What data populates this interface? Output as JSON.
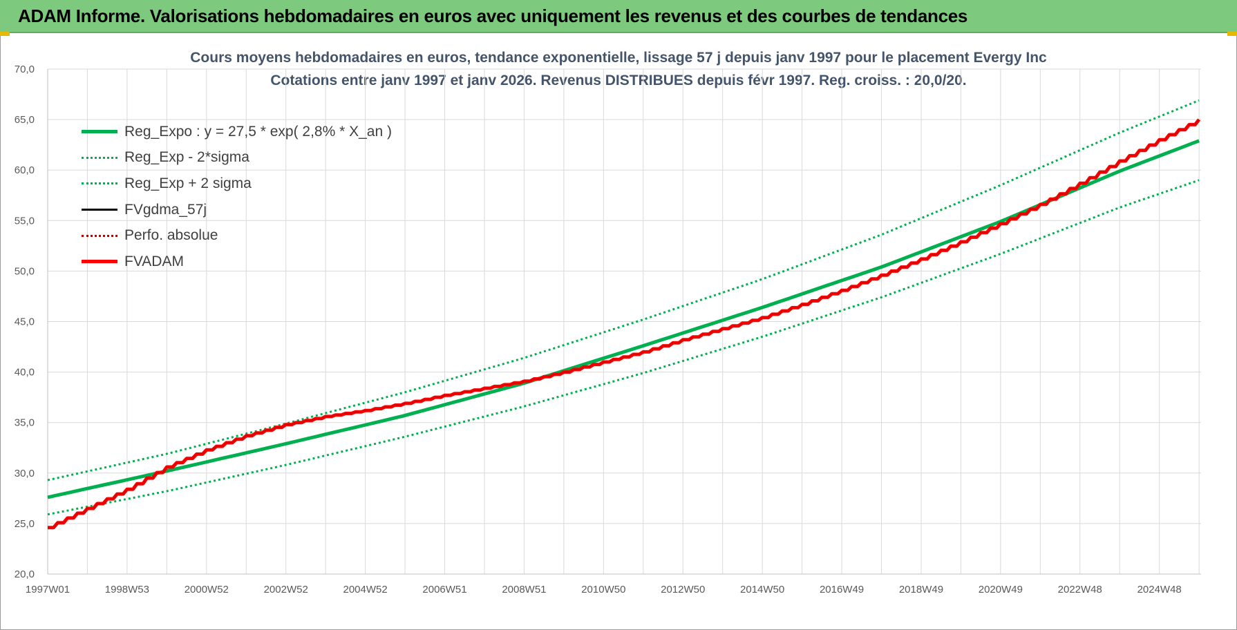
{
  "header": {
    "title": "ADAM Informe. Valorisations hebdomadaires en euros avec uniquement les revenus et des courbes de tendances"
  },
  "colors": {
    "banner": "#7dc97d",
    "regression": "#00b050",
    "fvadam": "#ff0000",
    "fvgdma": "#000000",
    "title_text": "#44546a"
  },
  "chart_data": {
    "type": "line",
    "title": "Cours moyens hebdomadaires en euros, tendance exponentielle, lissage 57 j depuis janv 1997 pour le placement Evergy Inc",
    "subtitle": "Cotations entre janv 1997 et janv 2026. Revenus DISTRIBUES depuis févr 1997. Reg. croiss. : 20,0/20.",
    "xlabel": "",
    "ylabel": "",
    "ylim": [
      20,
      70
    ],
    "y_ticks": [
      "20,0",
      "25,0",
      "30,0",
      "35,0",
      "40,0",
      "45,0",
      "50,0",
      "55,0",
      "60,0",
      "65,0",
      "70,0"
    ],
    "x_ticks": [
      "1997W01",
      "1998W53",
      "2000W52",
      "2002W52",
      "2004W52",
      "2006W51",
      "2008W51",
      "2010W50",
      "2012W50",
      "2014W50",
      "2016W49",
      "2018W49",
      "2020W49",
      "2022W48",
      "2024W48"
    ],
    "x_range_years": [
      1997.0,
      2026.05
    ],
    "grid": true,
    "legend_position": "top-left",
    "series": [
      {
        "name": "Reg_Expo : y = 27,5 * exp( 2,8% *  X_an )",
        "style": "solid-thick",
        "color": "#00b050",
        "x": [
          1997,
          2000,
          2003,
          2006,
          2009,
          2012,
          2015,
          2018,
          2021,
          2024,
          2026
        ],
        "values": [
          27.6,
          30.2,
          32.9,
          35.7,
          38.9,
          42.6,
          46.4,
          50.4,
          54.9,
          59.9,
          62.9
        ]
      },
      {
        "name": "Reg_Exp - 2*sigma",
        "style": "dotted",
        "color": "#00b050",
        "x": [
          1997,
          2000,
          2003,
          2006,
          2009,
          2012,
          2015,
          2018,
          2021,
          2024,
          2026
        ],
        "values": [
          25.9,
          28.2,
          30.8,
          33.6,
          36.6,
          39.9,
          43.5,
          47.4,
          51.7,
          56.3,
          59.0
        ]
      },
      {
        "name": "Reg_Exp + 2 sigma",
        "style": "dotted",
        "color": "#00b050",
        "x": [
          1997,
          2000,
          2003,
          2006,
          2009,
          2012,
          2015,
          2018,
          2021,
          2024,
          2026
        ],
        "values": [
          29.3,
          31.9,
          34.9,
          38.0,
          41.4,
          45.2,
          49.2,
          53.6,
          58.5,
          63.7,
          66.9
        ]
      },
      {
        "name": "FVgdma_57j",
        "style": "solid",
        "color": "#000000",
        "x": [],
        "values": []
      },
      {
        "name": "Perfo. absolue",
        "style": "dotted",
        "color": "#c00000",
        "x": [],
        "values": []
      },
      {
        "name": "FVADAM",
        "style": "solid-thick",
        "color": "#ff0000",
        "x": [
          1997,
          1998,
          1999,
          2000,
          2001,
          2002,
          2003,
          2004,
          2005,
          2006,
          2007,
          2008,
          2009,
          2010,
          2011,
          2012,
          2013,
          2014,
          2015,
          2016,
          2017,
          2018,
          2019,
          2020,
          2021,
          2022,
          2023,
          2024,
          2025,
          2026
        ],
        "values": [
          24.6,
          26.5,
          28.4,
          30.6,
          32.3,
          33.7,
          34.8,
          35.6,
          36.2,
          36.9,
          37.7,
          38.4,
          39.1,
          40.0,
          41.0,
          42.0,
          43.2,
          44.3,
          45.4,
          46.7,
          48.1,
          49.6,
          51.2,
          52.9,
          54.7,
          56.6,
          58.7,
          60.9,
          63.0,
          65.0
        ]
      }
    ]
  }
}
